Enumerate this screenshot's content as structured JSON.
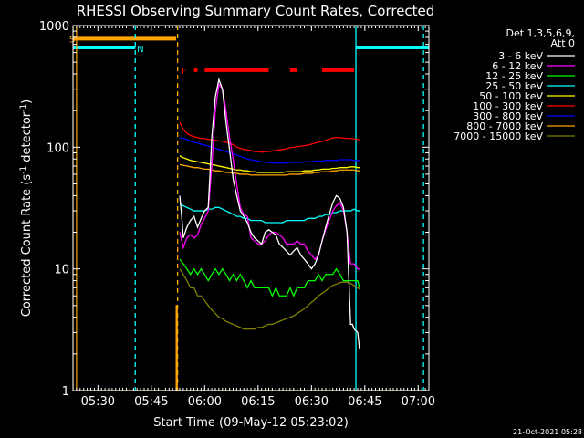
{
  "chart_data": {
    "type": "line",
    "title": "RHESSI Observing Summary Count Rates, Corrected",
    "xlabel": "Start Time (09-May-12 05:23:02)",
    "ylabel": "Corrected Count Rate (s⁻¹ detector⁻¹)",
    "ylabel_parts": [
      "Corrected Count Rate (s",
      "-1",
      " detector",
      "-1",
      ")"
    ],
    "x_unit": "minutes after 05:23:02",
    "xlim": [
      0,
      100
    ],
    "ylim": [
      1,
      1000
    ],
    "y_scale": "log",
    "x_ticks": [
      {
        "label": "05:30",
        "value": 7
      },
      {
        "label": "05:45",
        "value": 22
      },
      {
        "label": "06:00",
        "value": 37
      },
      {
        "label": "06:15",
        "value": 52
      },
      {
        "label": "06:30",
        "value": 67
      },
      {
        "label": "06:45",
        "value": 82
      },
      {
        "label": "07:00",
        "value": 97
      }
    ],
    "y_ticks": [
      {
        "label": "1",
        "value": 1
      },
      {
        "label": "10",
        "value": 10
      },
      {
        "label": "100",
        "value": 100
      },
      {
        "label": "1000",
        "value": 1000
      }
    ],
    "legend_header": [
      "Det 1,3,5,6,9,",
      "Att 0"
    ],
    "legend_position": "top-right, outside plot",
    "footer_date": "21-Oct-2021 05:28",
    "series": [
      {
        "name": "3 - 6 keV",
        "color": "#ffffff",
        "x": [
          30,
          30.5,
          31,
          32,
          33,
          34,
          35,
          36,
          37,
          38,
          38.5,
          39,
          40,
          41,
          42,
          43,
          44,
          45,
          46,
          47,
          48,
          49,
          50,
          51,
          52,
          53,
          54,
          55,
          56,
          57,
          58,
          59,
          60,
          61,
          62,
          63,
          64,
          65,
          66,
          67,
          68,
          69,
          70,
          71,
          72,
          73,
          74,
          75,
          76,
          77,
          78,
          78.5,
          79,
          80,
          80.5
        ],
        "y": [
          40,
          28,
          18,
          22,
          25,
          27,
          22,
          26,
          30,
          32,
          60,
          120,
          260,
          360,
          300,
          160,
          95,
          55,
          40,
          30,
          27,
          24,
          20,
          18,
          17,
          16,
          20,
          21,
          20,
          19,
          16,
          15,
          14,
          13,
          14,
          15,
          13,
          12,
          11,
          10,
          11,
          13,
          17,
          22,
          28,
          35,
          40,
          38,
          32,
          20,
          3.5,
          3.5,
          3.2,
          3.0,
          2.2
        ]
      },
      {
        "name": "6 - 12 keV",
        "color": "#ff00ff",
        "x": [
          30,
          31,
          32,
          33,
          34,
          35,
          36,
          37,
          38,
          39,
          40,
          41,
          42,
          43,
          44,
          45,
          46,
          47,
          48,
          49,
          50,
          51,
          52,
          53,
          54,
          55,
          56,
          57,
          58,
          59,
          60,
          61,
          62,
          63,
          64,
          65,
          66,
          67,
          68,
          69,
          70,
          71,
          72,
          73,
          74,
          75,
          76,
          77,
          78,
          79,
          80,
          80.5
        ],
        "y": [
          20,
          15,
          18,
          19,
          18,
          19,
          23,
          26,
          30,
          70,
          200,
          330,
          300,
          200,
          120,
          80,
          50,
          32,
          28,
          27,
          18,
          17,
          16,
          16,
          17,
          19,
          20,
          20,
          19,
          18,
          16,
          16,
          16,
          17,
          16,
          16,
          14,
          13,
          12,
          13,
          17,
          21,
          25,
          30,
          33,
          35,
          30,
          20,
          11,
          11,
          10,
          10
        ]
      },
      {
        "name": "12 - 25 keV",
        "color": "#00ff00",
        "x": [
          30,
          31,
          32,
          33,
          34,
          35,
          36,
          37,
          38,
          39,
          40,
          41,
          42,
          43,
          44,
          45,
          46,
          47,
          48,
          49,
          50,
          51,
          52,
          53,
          54,
          55,
          56,
          57,
          58,
          59,
          60,
          61,
          62,
          63,
          64,
          65,
          66,
          67,
          68,
          69,
          70,
          71,
          72,
          73,
          74,
          75,
          76,
          77,
          78,
          79,
          80,
          80.5
        ],
        "y": [
          12,
          11,
          10,
          9,
          10,
          9,
          10,
          9,
          8,
          9,
          10,
          9,
          10,
          9,
          8,
          9,
          8,
          9,
          8,
          7,
          8,
          7,
          7,
          7,
          7,
          7,
          6,
          7,
          6,
          6,
          6,
          7,
          6,
          7,
          7,
          7,
          8,
          8,
          8,
          9,
          8,
          9,
          9,
          9,
          10,
          9,
          8,
          8,
          8,
          8,
          8,
          7
        ]
      },
      {
        "name": "25 - 50 keV",
        "color": "#00ffff",
        "x": [
          30,
          31,
          32,
          33,
          34,
          35,
          36,
          37,
          38,
          39,
          40,
          41,
          42,
          43,
          44,
          45,
          46,
          47,
          48,
          49,
          50,
          51,
          52,
          53,
          54,
          55,
          56,
          57,
          58,
          59,
          60,
          61,
          62,
          63,
          64,
          65,
          66,
          67,
          68,
          69,
          70,
          71,
          72,
          73,
          74,
          75,
          76,
          77,
          78,
          79,
          80,
          80.5
        ],
        "y": [
          34,
          33,
          32,
          31,
          30,
          30,
          30,
          30,
          31,
          31,
          32,
          32,
          31,
          30,
          29,
          28,
          27,
          27,
          26,
          26,
          25,
          25,
          25,
          25,
          24,
          24,
          24,
          24,
          24,
          24,
          25,
          25,
          25,
          25,
          25,
          25,
          26,
          26,
          26,
          27,
          27,
          28,
          28,
          29,
          29,
          30,
          30,
          30,
          30,
          31,
          30,
          30
        ]
      },
      {
        "name": "50 - 100 keV",
        "color": "#ffff00",
        "x": [
          30,
          31,
          32,
          33,
          34,
          35,
          36,
          37,
          38,
          39,
          40,
          41,
          42,
          43,
          44,
          45,
          46,
          47,
          48,
          49,
          50,
          51,
          52,
          53,
          54,
          55,
          56,
          57,
          58,
          59,
          60,
          61,
          62,
          63,
          64,
          65,
          66,
          67,
          68,
          69,
          70,
          71,
          72,
          73,
          74,
          75,
          76,
          77,
          78,
          79,
          80,
          80.5
        ],
        "y": [
          85,
          82,
          80,
          78,
          77,
          76,
          75,
          74,
          73,
          72,
          71,
          70,
          69,
          68,
          67,
          66,
          65,
          65,
          64,
          64,
          63,
          63,
          62,
          62,
          62,
          62,
          62,
          62,
          62,
          62,
          63,
          63,
          63,
          63,
          63,
          64,
          64,
          64,
          65,
          65,
          66,
          66,
          66,
          67,
          67,
          68,
          68,
          68,
          69,
          69,
          68,
          68
        ]
      },
      {
        "name": "100 - 300 keV",
        "color": "#ff0000",
        "x": [
          30,
          31,
          32,
          33,
          34,
          35,
          36,
          37,
          38,
          39,
          40,
          41,
          42,
          43,
          44,
          45,
          46,
          47,
          48,
          49,
          50,
          51,
          52,
          53,
          54,
          55,
          56,
          57,
          58,
          59,
          60,
          61,
          62,
          63,
          64,
          65,
          66,
          67,
          68,
          69,
          70,
          71,
          72,
          73,
          74,
          75,
          76,
          77,
          78,
          79,
          80,
          80.5
        ],
        "y": [
          160,
          140,
          130,
          125,
          122,
          120,
          118,
          118,
          116,
          115,
          114,
          113,
          112,
          110,
          108,
          105,
          100,
          98,
          96,
          95,
          94,
          92,
          92,
          91,
          92,
          92,
          93,
          94,
          95,
          96,
          97,
          99,
          100,
          101,
          102,
          103,
          104,
          106,
          108,
          110,
          112,
          114,
          117,
          119,
          120,
          120,
          119,
          118,
          118,
          117,
          116,
          115
        ]
      },
      {
        "name": "300 - 800 keV",
        "color": "#0000ff",
        "x": [
          30,
          31,
          32,
          33,
          34,
          35,
          36,
          37,
          38,
          39,
          40,
          41,
          42,
          43,
          44,
          45,
          46,
          47,
          48,
          49,
          50,
          51,
          52,
          53,
          54,
          55,
          56,
          57,
          58,
          59,
          60,
          61,
          62,
          63,
          64,
          65,
          66,
          67,
          68,
          69,
          70,
          71,
          72,
          73,
          74,
          75,
          76,
          77,
          78,
          79,
          80,
          80.5
        ],
        "y": [
          120,
          118,
          116,
          112,
          110,
          108,
          106,
          104,
          102,
          100,
          98,
          96,
          94,
          92,
          90,
          88,
          86,
          84,
          82,
          80,
          79,
          78,
          77,
          76,
          75,
          75,
          74,
          74,
          74,
          74,
          74,
          75,
          75,
          75,
          75,
          76,
          76,
          76,
          77,
          77,
          77,
          78,
          78,
          78,
          78,
          79,
          79,
          79,
          79,
          78,
          78,
          78
        ]
      },
      {
        "name": "800 - 7000 keV",
        "color": "#ffa500",
        "x": [
          30,
          31,
          32,
          33,
          34,
          35,
          36,
          37,
          38,
          39,
          40,
          41,
          42,
          43,
          44,
          45,
          46,
          47,
          48,
          49,
          50,
          51,
          52,
          53,
          54,
          55,
          56,
          57,
          58,
          59,
          60,
          61,
          62,
          63,
          64,
          65,
          66,
          67,
          68,
          69,
          70,
          71,
          72,
          73,
          74,
          75,
          76,
          77,
          78,
          79,
          80,
          80.5
        ],
        "y": [
          72,
          71,
          70,
          69,
          68,
          68,
          67,
          66,
          66,
          65,
          64,
          64,
          63,
          62,
          62,
          61,
          61,
          60,
          60,
          60,
          59,
          59,
          59,
          59,
          59,
          59,
          59,
          59,
          59,
          59,
          59,
          60,
          60,
          60,
          60,
          61,
          61,
          61,
          62,
          62,
          63,
          63,
          63,
          64,
          64,
          65,
          65,
          65,
          65,
          65,
          64,
          64
        ]
      },
      {
        "name": "7000 - 15000 keV",
        "color": "#808000",
        "x": [
          30,
          31,
          32,
          33,
          34,
          35,
          36,
          37,
          38,
          39,
          40,
          41,
          42,
          43,
          44,
          45,
          46,
          47,
          48,
          49,
          50,
          51,
          52,
          53,
          54,
          55,
          56,
          57,
          58,
          59,
          60,
          61,
          62,
          63,
          64,
          65,
          66,
          67,
          68,
          69,
          70,
          71,
          72,
          73,
          74,
          75,
          76,
          77,
          78,
          79,
          80,
          80.5
        ],
        "y": [
          10,
          9,
          8,
          7,
          7,
          6,
          6,
          5.5,
          5,
          4.6,
          4.3,
          4.0,
          3.9,
          3.7,
          3.6,
          3.5,
          3.4,
          3.3,
          3.2,
          3.2,
          3.2,
          3.2,
          3.3,
          3.3,
          3.4,
          3.5,
          3.5,
          3.6,
          3.7,
          3.8,
          3.9,
          4.0,
          4.1,
          4.3,
          4.5,
          4.7,
          5.0,
          5.3,
          5.6,
          6.0,
          6.3,
          6.6,
          7.0,
          7.3,
          7.5,
          7.7,
          7.8,
          7.8,
          7.6,
          7.3,
          7.0,
          6.8
        ]
      }
    ],
    "attenuator_steps": {
      "color": "#ffa500",
      "x": [
        0,
        0,
        1,
        1,
        29,
        29,
        29.3,
        29.3,
        80.8,
        80.8,
        100
      ],
      "y": [
        1,
        1000,
        1000,
        1,
        1,
        5,
        5,
        1,
        1,
        1,
        1
      ]
    },
    "annotations": [
      {
        "text": "S",
        "x": -0.5,
        "y": 780,
        "color": "#ffa500"
      },
      {
        "text": "N",
        "x": 18.5,
        "y": 650,
        "color": "#00ffff"
      },
      {
        "text": "F",
        "x": 31,
        "y": 430,
        "color": "#ff0000"
      }
    ],
    "bands": [
      {
        "name": "SAA",
        "color": "#ffa500",
        "y": 780,
        "segments": [
          [
            0,
            29
          ]
        ]
      },
      {
        "name": "Night",
        "color": "#00ffff",
        "y": 660,
        "segments": [
          [
            0,
            17.5
          ],
          [
            79.5,
            100
          ]
        ]
      },
      {
        "name": "Flare",
        "color": "#ff0000",
        "y": 430,
        "segments": [
          [
            34,
            35
          ],
          [
            37,
            55
          ],
          [
            61,
            63
          ],
          [
            70,
            79
          ]
        ]
      }
    ],
    "vertical_lines": [
      {
        "x": -0.5,
        "color": "#00ffff",
        "style": "solid"
      },
      {
        "x": 17.5,
        "color": "#00ffff",
        "style": "dashed"
      },
      {
        "x": 29.4,
        "color": "#ffa500",
        "style": "dashed"
      },
      {
        "x": 79.5,
        "color": "#00ffff",
        "style": "solid"
      },
      {
        "x": 98.5,
        "color": "#00ffff",
        "style": "dashed"
      }
    ]
  }
}
